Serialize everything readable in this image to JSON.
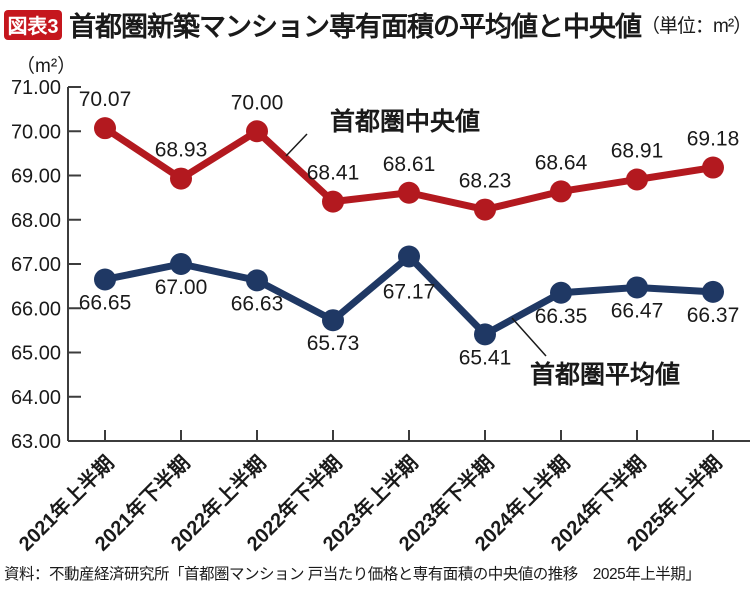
{
  "header": {
    "badge": "図表3",
    "title": "首都圏新築マンション専有面積の平均値と中央値",
    "unit_suffix": "（単位：m²）"
  },
  "chart_data": {
    "type": "line",
    "title": "首都圏新築マンション専有面積の平均値と中央値（単位：m²）",
    "unit_label": "（m²）",
    "categories": [
      "2021年上半期",
      "2021年下半期",
      "2022年上半期",
      "2022年下半期",
      "2023年上半期",
      "2023年下半期",
      "2024年上半期",
      "2024年下半期",
      "2025年上半期"
    ],
    "series": [
      {
        "name": "首都圏中央値",
        "color": "#b3191f",
        "label_position": "above",
        "values": [
          70.07,
          68.93,
          70.0,
          68.41,
          68.61,
          68.23,
          68.64,
          68.91,
          69.18
        ]
      },
      {
        "name": "首都圏平均値",
        "color": "#1f3864",
        "label_position": "below",
        "values": [
          66.65,
          67.0,
          66.63,
          65.73,
          67.17,
          65.41,
          66.35,
          66.47,
          66.37
        ]
      }
    ],
    "ylim": [
      63.0,
      71.0
    ],
    "ytick_step": 1.0,
    "grid": false,
    "legend": "inline-callouts"
  },
  "colors": {
    "badge_red": "#c5161d",
    "median_red": "#b3191f",
    "average_navy": "#1f3864",
    "axis": "#3c3c3c",
    "text": "#1a1a1a"
  },
  "source": "資料：不動産経済研究所「首都圏マンション 戸当たり価格と専有面積の中央値の推移　2025年上半期」"
}
